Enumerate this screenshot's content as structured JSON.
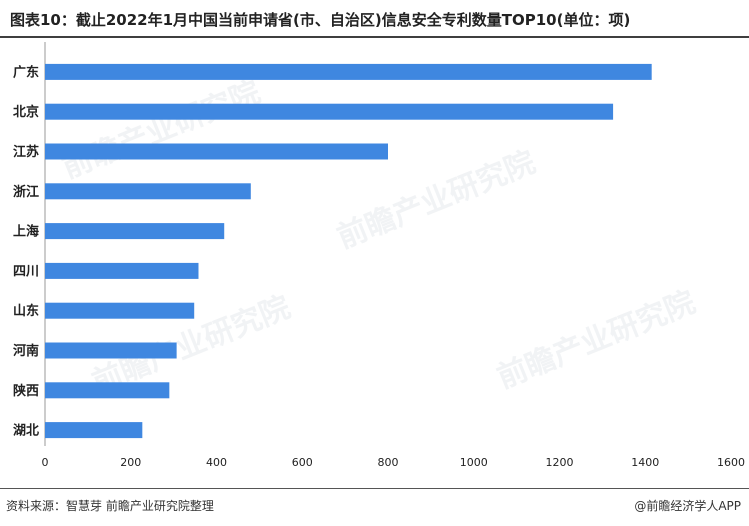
{
  "title": "图表10：截止2022年1月中国当前申请省(市、自治区)信息安全专利数量TOP10(单位：项)",
  "source": "资料来源：智慧芽 前瞻产业研究院整理",
  "brand": "@前瞻经济学人APP",
  "watermark": "前瞻产业研究院",
  "colors": {
    "bar": "#3f87e0",
    "axis": "#999999",
    "text": "#222222"
  },
  "chart_data": {
    "type": "bar",
    "orientation": "horizontal",
    "categories": [
      "广东",
      "北京",
      "江苏",
      "浙江",
      "上海",
      "四川",
      "山东",
      "河南",
      "陕西",
      "湖北"
    ],
    "values": [
      1415,
      1325,
      800,
      480,
      418,
      358,
      348,
      307,
      290,
      227
    ],
    "xlim": [
      0,
      1600
    ],
    "xticks": [
      0,
      200,
      400,
      600,
      800,
      1000,
      1200,
      1400,
      1600
    ],
    "grid": false,
    "legend": "none"
  }
}
